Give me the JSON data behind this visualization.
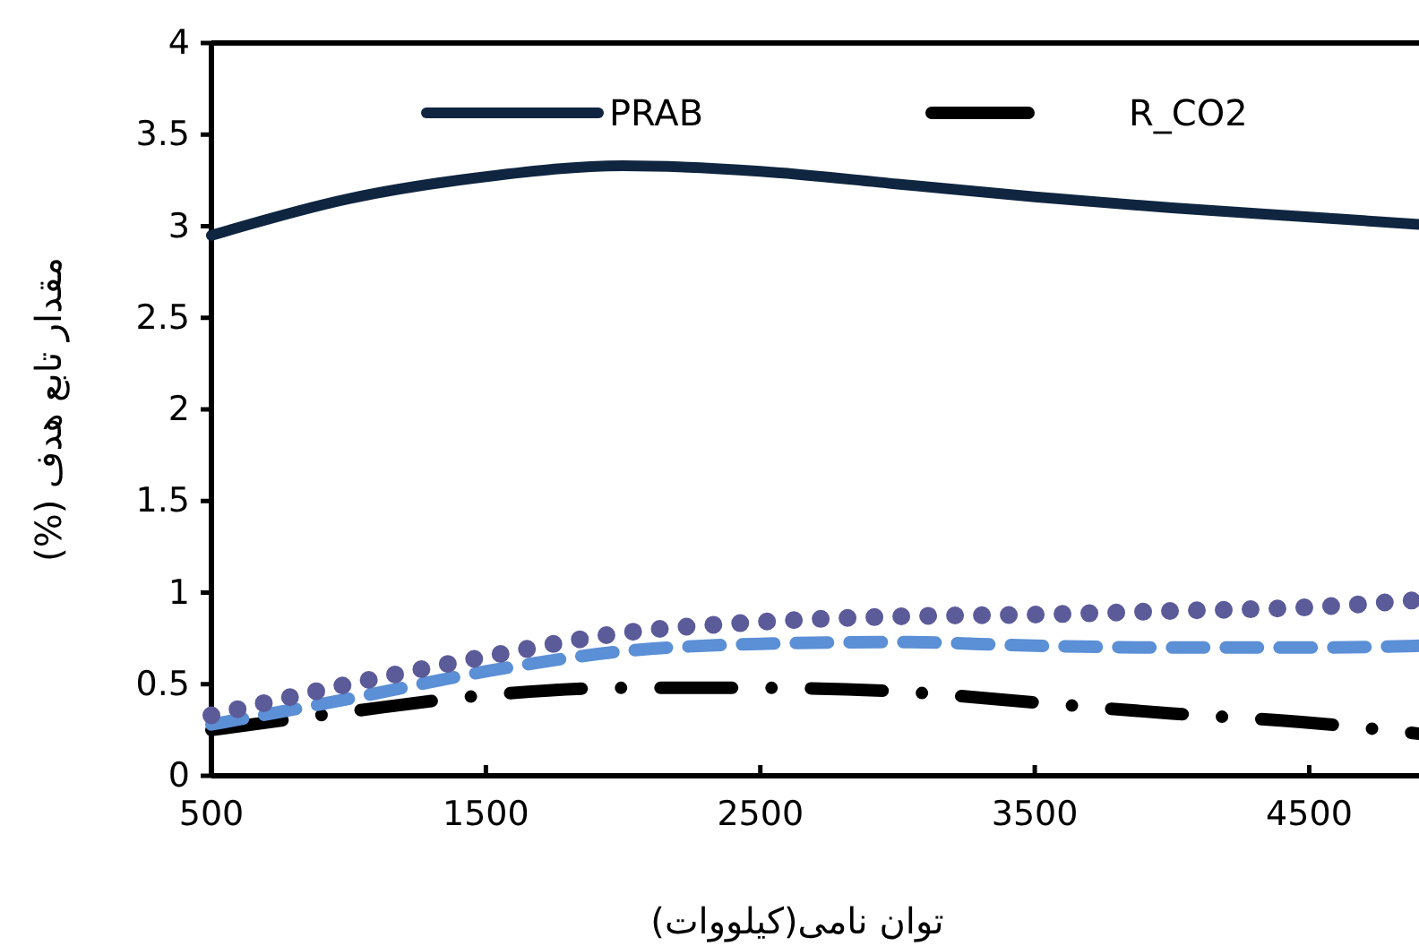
{
  "chart_data": {
    "type": "line",
    "xlabel": "توان نامی(کیلووات)",
    "ylabel": "مقدار تابع هدف (%)",
    "x": [
      500,
      1000,
      1500,
      2000,
      2500,
      3000,
      3500,
      4000,
      4500,
      4900
    ],
    "xlim": [
      500,
      4900
    ],
    "xticks": [
      500,
      1500,
      2500,
      3500,
      4500
    ],
    "ylim": [
      0,
      4
    ],
    "yticks": [
      0,
      0.5,
      1,
      1.5,
      2,
      2.5,
      3,
      3.5,
      4
    ],
    "grid": false,
    "legend": "top",
    "marker": "none",
    "series": [
      {
        "name": "PRAB",
        "color": "#0f2540",
        "line_style": "solid",
        "values": [
          2.95,
          3.15,
          3.27,
          3.33,
          3.3,
          3.23,
          3.16,
          3.1,
          3.05,
          3.01
        ]
      },
      {
        "name": "R_CO2",
        "color": "#000000",
        "line_style": "dashdot",
        "values": [
          0.25,
          0.35,
          0.44,
          0.48,
          0.48,
          0.46,
          0.4,
          0.34,
          0.29,
          0.23
        ]
      },
      {
        "color": "#5b8fd6",
        "line_style": "dashed",
        "values": [
          0.28,
          0.42,
          0.57,
          0.68,
          0.72,
          0.73,
          0.71,
          0.7,
          0.7,
          0.71
        ]
      },
      {
        "color": "#5b5b9a",
        "line_style": "dotted",
        "values": [
          0.33,
          0.5,
          0.65,
          0.78,
          0.84,
          0.87,
          0.88,
          0.9,
          0.92,
          0.96
        ]
      }
    ]
  }
}
